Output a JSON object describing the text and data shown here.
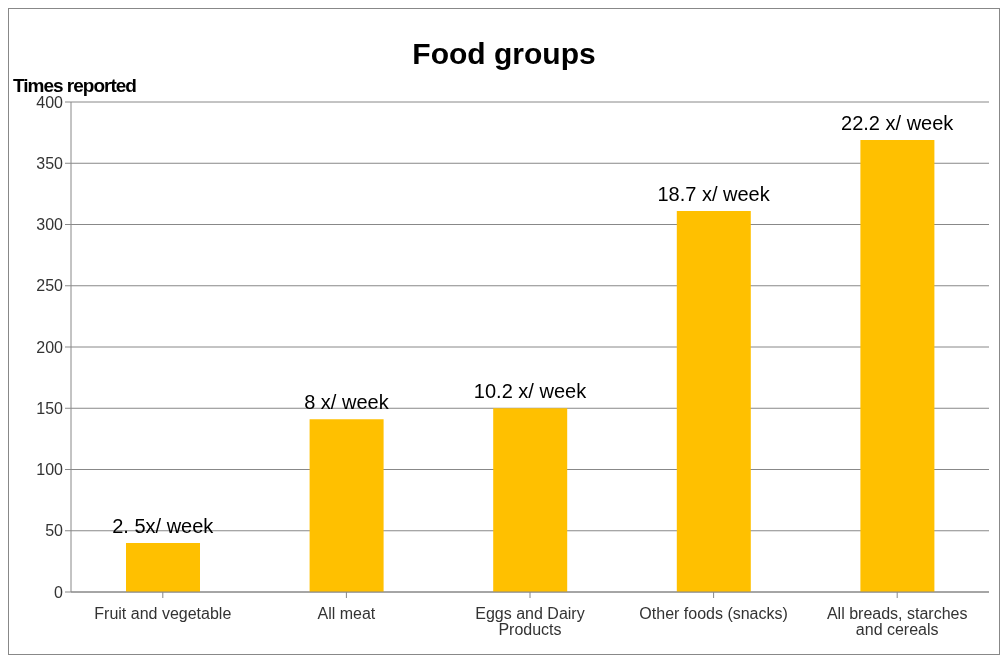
{
  "chart_data": {
    "type": "bar",
    "title": "Food groups",
    "ylabel": "Times reported",
    "categories": [
      "Fruit and vegetable",
      "All meat",
      "Eggs and Dairy Products",
      "Other foods (snacks)",
      "All breads, starches and cereals"
    ],
    "values": [
      40,
      141,
      150,
      311,
      369
    ],
    "annotations": [
      {
        "text": "2. 5x/ week",
        "x": "Fruit and vegetable",
        "y": 40
      },
      {
        "text": "8 x/ week",
        "x": "All meat",
        "y": 141
      },
      {
        "text": "10.2 x/ week",
        "x": "Eggs and Dairy Products",
        "y": 150
      },
      {
        "text": "18.7 x/ week",
        "x": "Other foods (snacks)",
        "y": 311
      },
      {
        "text": "22.2 x/ week",
        "x": "All breads, starches and cereals",
        "y": 369
      }
    ],
    "color": "#ffc000",
    "ylim": [
      0,
      400
    ],
    "yticks": [
      0,
      50,
      100,
      150,
      200,
      250,
      300,
      350,
      400
    ],
    "grid": "y"
  }
}
